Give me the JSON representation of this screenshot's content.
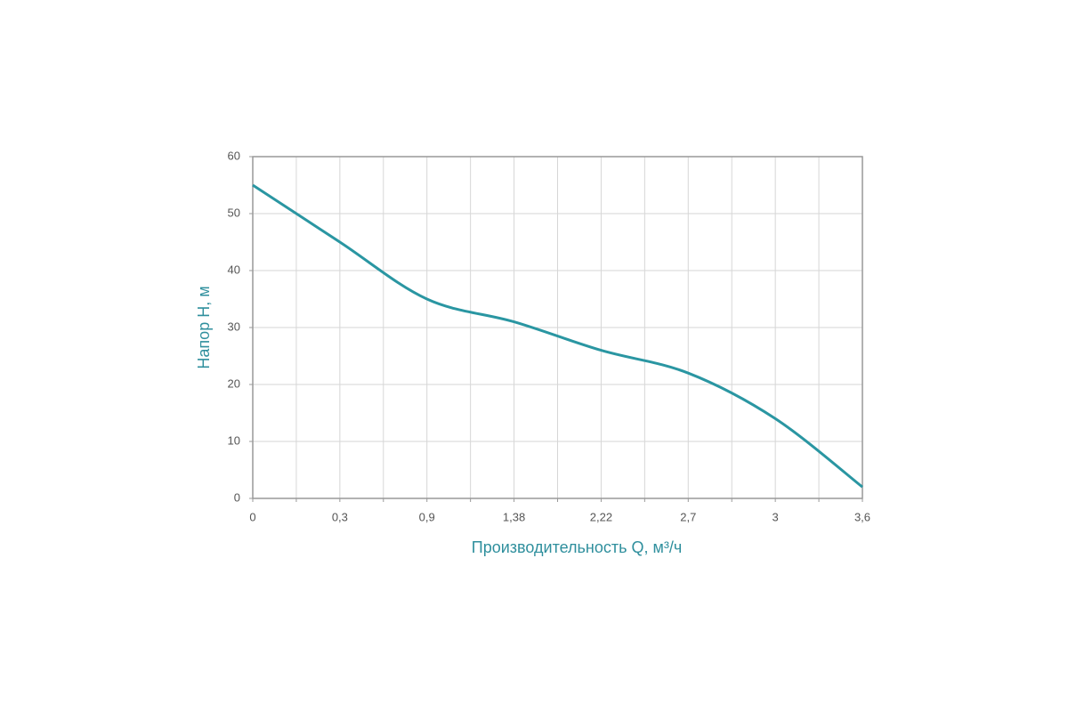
{
  "chart_data": {
    "type": "line",
    "x_label": "Производительность Q, м³/ч",
    "y_label": "Напор Н, м",
    "categories": [
      "0",
      "0,3",
      "0,9",
      "1,38",
      "2,22",
      "2,7",
      "3",
      "3,6"
    ],
    "series": [
      {
        "name": null,
        "color": "#2a96a2",
        "values": [
          55,
          45,
          35,
          31,
          26,
          22,
          14,
          2
        ]
      }
    ],
    "ylim": [
      0,
      60
    ],
    "yticks": [
      0,
      10,
      20,
      30,
      40,
      50,
      60
    ],
    "grid": true
  }
}
